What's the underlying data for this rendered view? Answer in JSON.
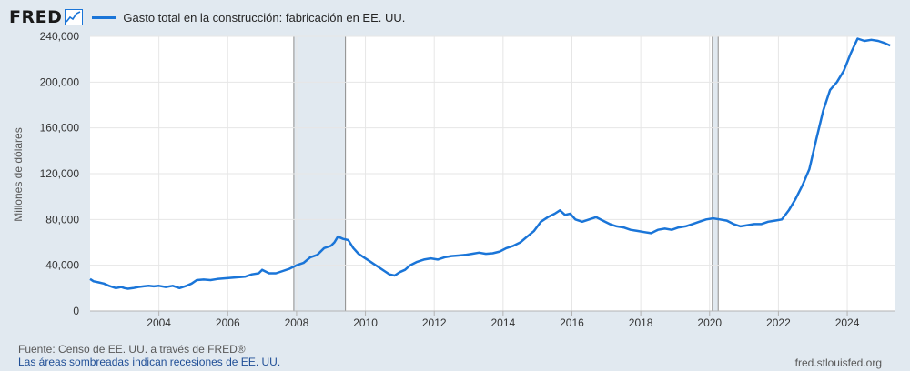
{
  "brand": {
    "logo": "FRED",
    "logo_icon": "fred-trend-icon"
  },
  "colors": {
    "line": "#1a75d8",
    "recession": "#e1e9f0",
    "grid": "#e6e6e6",
    "background": "#e1e9f0",
    "plot_bg": "#ffffff"
  },
  "legend": {
    "label": "Gasto total en la construcción: fabricación en EE. UU."
  },
  "footer": {
    "source": "Fuente: Censo de EE. UU. a través de FRED®",
    "note": "Las áreas sombreadas indican recesiones de EE. UU.",
    "site": "fred.stlouisfed.org"
  },
  "chart_data": {
    "type": "line",
    "title": "",
    "xlabel": "",
    "ylabel": "Millones de dólares",
    "xlim": [
      2002.0,
      2025.4
    ],
    "ylim": [
      0,
      240000
    ],
    "grid": true,
    "legend_position": "top-left",
    "x_ticks": [
      2004,
      2006,
      2008,
      2010,
      2012,
      2014,
      2016,
      2018,
      2020,
      2022,
      2024
    ],
    "x_tick_labels": [
      "2004",
      "2006",
      "2008",
      "2010",
      "2012",
      "2014",
      "2016",
      "2018",
      "2020",
      "2022",
      "2024"
    ],
    "y_ticks": [
      0,
      40000,
      80000,
      120000,
      160000,
      200000,
      240000
    ],
    "y_tick_labels": [
      "0",
      "40,000",
      "80,000",
      "120,000",
      "160,000",
      "200,000",
      "240,000"
    ],
    "recessions": [
      [
        2007.92,
        2009.42
      ],
      [
        2020.08,
        2020.25
      ]
    ],
    "series": [
      {
        "name": "Gasto total en la construcción: fabricación en EE. UU.",
        "x": [
          2002.0,
          2002.1,
          2002.25,
          2002.4,
          2002.55,
          2002.75,
          2002.9,
          2003.0,
          2003.1,
          2003.25,
          2003.4,
          2003.55,
          2003.7,
          2003.85,
          2004.0,
          2004.2,
          2004.4,
          2004.6,
          2004.8,
          2004.95,
          2005.1,
          2005.3,
          2005.5,
          2005.7,
          2005.9,
          2006.1,
          2006.3,
          2006.5,
          2006.7,
          2006.9,
          2007.0,
          2007.2,
          2007.4,
          2007.6,
          2007.8,
          2008.0,
          2008.2,
          2008.4,
          2008.6,
          2008.8,
          2009.0,
          2009.1,
          2009.2,
          2009.35,
          2009.5,
          2009.65,
          2009.8,
          2009.95,
          2010.1,
          2010.25,
          2010.4,
          2010.55,
          2010.7,
          2010.85,
          2011.0,
          2011.15,
          2011.3,
          2011.5,
          2011.7,
          2011.9,
          2012.1,
          2012.3,
          2012.5,
          2012.7,
          2012.9,
          2013.1,
          2013.3,
          2013.5,
          2013.7,
          2013.9,
          2014.1,
          2014.3,
          2014.5,
          2014.7,
          2014.9,
          2015.1,
          2015.3,
          2015.5,
          2015.65,
          2015.8,
          2015.95,
          2016.1,
          2016.3,
          2016.5,
          2016.7,
          2016.9,
          2017.1,
          2017.3,
          2017.5,
          2017.7,
          2017.9,
          2018.1,
          2018.3,
          2018.5,
          2018.7,
          2018.9,
          2019.1,
          2019.3,
          2019.5,
          2019.7,
          2019.9,
          2020.1,
          2020.3,
          2020.5,
          2020.7,
          2020.9,
          2021.1,
          2021.3,
          2021.5,
          2021.7,
          2021.9,
          2022.1,
          2022.3,
          2022.5,
          2022.7,
          2022.9,
          2023.1,
          2023.3,
          2023.5,
          2023.7,
          2023.9,
          2024.1,
          2024.3,
          2024.5,
          2024.7,
          2024.9,
          2025.1,
          2025.25
        ],
        "values": [
          28000,
          26000,
          25000,
          24000,
          22000,
          20000,
          21000,
          20000,
          19500,
          20000,
          21000,
          21500,
          22000,
          21500,
          22000,
          21000,
          22000,
          20000,
          22000,
          24000,
          27000,
          27500,
          27000,
          28000,
          28500,
          29000,
          29500,
          30000,
          32000,
          33000,
          36000,
          33000,
          33000,
          35000,
          37000,
          40000,
          42000,
          47000,
          49000,
          55000,
          57000,
          60000,
          65000,
          63000,
          62000,
          55000,
          50000,
          47000,
          44000,
          41000,
          38000,
          35000,
          32000,
          31000,
          34000,
          36000,
          40000,
          43000,
          45000,
          46000,
          45000,
          47000,
          48000,
          48500,
          49000,
          50000,
          51000,
          50000,
          50500,
          52000,
          55000,
          57000,
          60000,
          65000,
          70000,
          78000,
          82000,
          85000,
          88000,
          84000,
          85000,
          80000,
          78000,
          80000,
          82000,
          79000,
          76000,
          74000,
          73000,
          71000,
          70000,
          69000,
          68000,
          71000,
          72000,
          71000,
          73000,
          74000,
          76000,
          78000,
          80000,
          81000,
          80000,
          79000,
          76000,
          74000,
          75000,
          76000,
          76000,
          78000,
          79000,
          80000,
          88000,
          98000,
          110000,
          124000,
          150000,
          175000,
          193000,
          200000,
          210000,
          225000,
          238000,
          236000,
          237000,
          236000,
          234000,
          232000
        ]
      }
    ]
  }
}
